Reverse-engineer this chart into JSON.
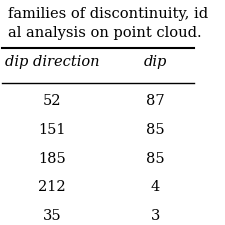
{
  "caption_lines": [
    "families of discontinuity, id",
    "al analysis on point cloud."
  ],
  "col_headers": [
    "dip direction",
    "dip"
  ],
  "rows": [
    [
      52,
      87
    ],
    [
      151,
      85
    ],
    [
      185,
      85
    ],
    [
      212,
      4
    ],
    [
      35,
      3
    ]
  ],
  "bg_color": "#ffffff",
  "text_color": "#000000",
  "font_size": 10.5,
  "header_font_size": 10.5
}
